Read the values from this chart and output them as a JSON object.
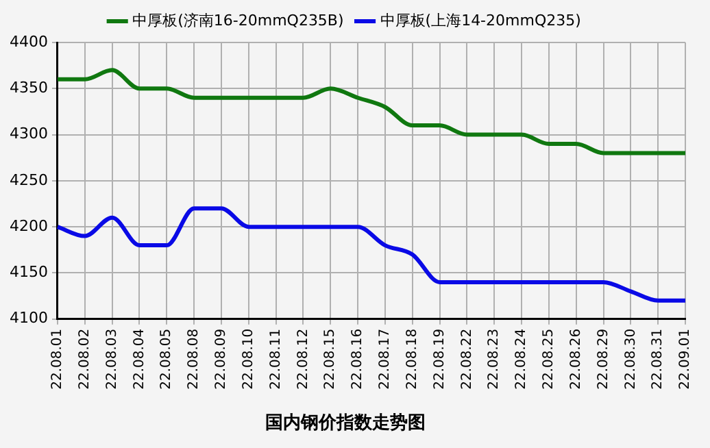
{
  "chart_data": {
    "type": "line",
    "title": "国内钢价指数走势图",
    "categories": [
      "22.08.01",
      "22.08.02",
      "22.08.03",
      "22.08.04",
      "22.08.05",
      "22.08.08",
      "22.08.09",
      "22.08.10",
      "22.08.11",
      "22.08.12",
      "22.08.15",
      "22.08.16",
      "22.08.17",
      "22.08.18",
      "22.08.19",
      "22.08.22",
      "22.08.23",
      "22.08.24",
      "22.08.25",
      "22.08.26",
      "22.08.29",
      "22.08.30",
      "22.08.31",
      "22.09.01"
    ],
    "series": [
      {
        "name": "中厚板(济南16-20mmQ235B)",
        "color": "#107810",
        "values": [
          4360,
          4360,
          4370,
          4350,
          4350,
          4340,
          4340,
          4340,
          4340,
          4340,
          4350,
          4340,
          4330,
          4310,
          4310,
          4300,
          4300,
          4300,
          4290,
          4290,
          4280,
          4280,
          4280,
          4280
        ]
      },
      {
        "name": "中厚板(上海14-20mmQ235)",
        "color": "#0a0ae6",
        "values": [
          4200,
          4190,
          4210,
          4180,
          4180,
          4220,
          4220,
          4200,
          4200,
          4200,
          4200,
          4200,
          4180,
          4170,
          4140,
          4140,
          4140,
          4140,
          4140,
          4140,
          4140,
          4130,
          4120,
          4120
        ]
      }
    ],
    "ylim": [
      4100,
      4400
    ],
    "yticks": [
      4100,
      4150,
      4200,
      4250,
      4300,
      4350,
      4400
    ],
    "grid": true,
    "legend": "top",
    "marker": "none",
    "line_style": "solid"
  }
}
